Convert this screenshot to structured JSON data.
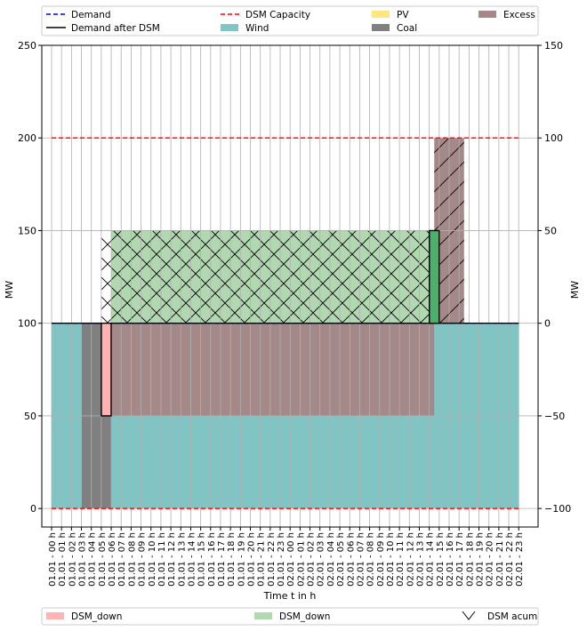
{
  "chart_data": {
    "type": "area",
    "xlabel": "Time t in h",
    "ylabel_left": "MW",
    "ylabel_right": "MW",
    "ylim_left": [
      -10,
      250
    ],
    "yticks_left": [
      0,
      50,
      100,
      150,
      200,
      250
    ],
    "ylim_right": [
      -110,
      150
    ],
    "yticks_right": [
      -100,
      -50,
      0,
      50,
      100,
      150
    ],
    "grid": true,
    "categories": [
      "01.01 - 00 h",
      "01.01 - 01 h",
      "01.01 - 02 h",
      "01.01 - 03 h",
      "01.01 - 04 h",
      "01.01 - 05 h",
      "01.01 - 06 h",
      "01.01 - 07 h",
      "01.01 - 08 h",
      "01.01 - 09 h",
      "01.01 - 10 h",
      "01.01 - 11 h",
      "01.01 - 12 h",
      "01.01 - 13 h",
      "01.01 - 14 h",
      "01.01 - 15 h",
      "01.01 - 16 h",
      "01.01 - 17 h",
      "01.01 - 18 h",
      "01.01 - 19 h",
      "01.01 - 20 h",
      "01.01 - 21 h",
      "01.01 - 22 h",
      "01.01 - 23 h",
      "02.01 - 00 h",
      "02.01 - 01 h",
      "02.01 - 02 h",
      "02.01 - 03 h",
      "02.01 - 04 h",
      "02.01 - 05 h",
      "02.01 - 06 h",
      "02.01 - 07 h",
      "02.01 - 08 h",
      "02.01 - 09 h",
      "02.01 - 10 h",
      "02.01 - 11 h",
      "02.01 - 12 h",
      "02.01 - 13 h",
      "02.01 - 14 h",
      "02.01 - 15 h",
      "02.01 - 16 h",
      "02.01 - 17 h",
      "02.01 - 18 h",
      "02.01 - 19 h",
      "02.01 - 20 h",
      "02.01 - 21 h",
      "02.01 - 22 h",
      "02.01 - 23 h"
    ],
    "stack_left": [
      {
        "name": "Wind",
        "color": "#80c4c4",
        "from_hour": 0,
        "to_hour": 47,
        "values": [
          100,
          100,
          100,
          100,
          100,
          100,
          100,
          100,
          100,
          100,
          100,
          100,
          100,
          100,
          100,
          100,
          100,
          100,
          100,
          100,
          100,
          100,
          100,
          100,
          100,
          100,
          100,
          100,
          100,
          100,
          100,
          100,
          100,
          100,
          100,
          100,
          100,
          100,
          100,
          100,
          100,
          100,
          100,
          100,
          100,
          100,
          100,
          100
        ]
      },
      {
        "name": "Coal",
        "color": "#808080",
        "segments": [
          {
            "from_hour": 3,
            "to_hour": 6,
            "y0": 0,
            "y1": 100
          }
        ]
      },
      {
        "name": "Excess",
        "color": "#a58888",
        "segments": [
          {
            "from_hour": 6,
            "to_hour": 38.5,
            "y0": 50,
            "y1": 100
          },
          {
            "from_hour": 38.5,
            "to_hour": 41.5,
            "y0": 100,
            "y1": 200
          }
        ],
        "hatched_segment": 1
      },
      {
        "name": "DSM_down",
        "color": "#b2d8b2",
        "segments": [
          {
            "from_hour": 5,
            "to_hour": 38.5,
            "y0": 100,
            "y1": 150
          }
        ],
        "hatched": true
      }
    ],
    "lines": [
      {
        "name": "Demand",
        "color": "#0000ff",
        "style": "dashed",
        "y": 100,
        "from_hour": 0,
        "to_hour": 47
      },
      {
        "name": "Demand after DSM",
        "color": "#000000",
        "style": "solid",
        "y": 100,
        "from_hour": 0,
        "to_hour": 47
      },
      {
        "name": "DSM Capacity",
        "color": "#ff0000",
        "style": "dashed",
        "y_values": [
          0,
          200
        ],
        "from_hour": 0,
        "to_hour": 47
      }
    ],
    "bars_right_axis": [
      {
        "name": "DSM_down",
        "color": "#ffb3b3",
        "hour": 5.5,
        "value": -50
      },
      {
        "name": "DSM_up",
        "color": "#4caf6e",
        "hour": 38.5,
        "value": 50
      }
    ],
    "legend_top": [
      {
        "label": "Demand",
        "kind": "line-dashed",
        "color": "#0000ff"
      },
      {
        "label": "DSM Capacity",
        "kind": "line-dashed",
        "color": "#ff0000"
      },
      {
        "label": "PV",
        "kind": "patch",
        "color": "#ffe680"
      },
      {
        "label": "Excess",
        "kind": "patch",
        "color": "#a58888"
      },
      {
        "label": "Demand after DSM",
        "kind": "line",
        "color": "#000000"
      },
      {
        "label": "Wind",
        "kind": "patch",
        "color": "#80c4c4"
      },
      {
        "label": "Coal",
        "kind": "patch",
        "color": "#808080"
      }
    ],
    "legend_bottom": [
      {
        "label": "DSM_down",
        "kind": "patch",
        "color": "#ffb3b3"
      },
      {
        "label": "DSM_down",
        "kind": "patch",
        "color": "#b2d8b2"
      },
      {
        "label": "DSM acum",
        "kind": "hatch"
      }
    ]
  }
}
